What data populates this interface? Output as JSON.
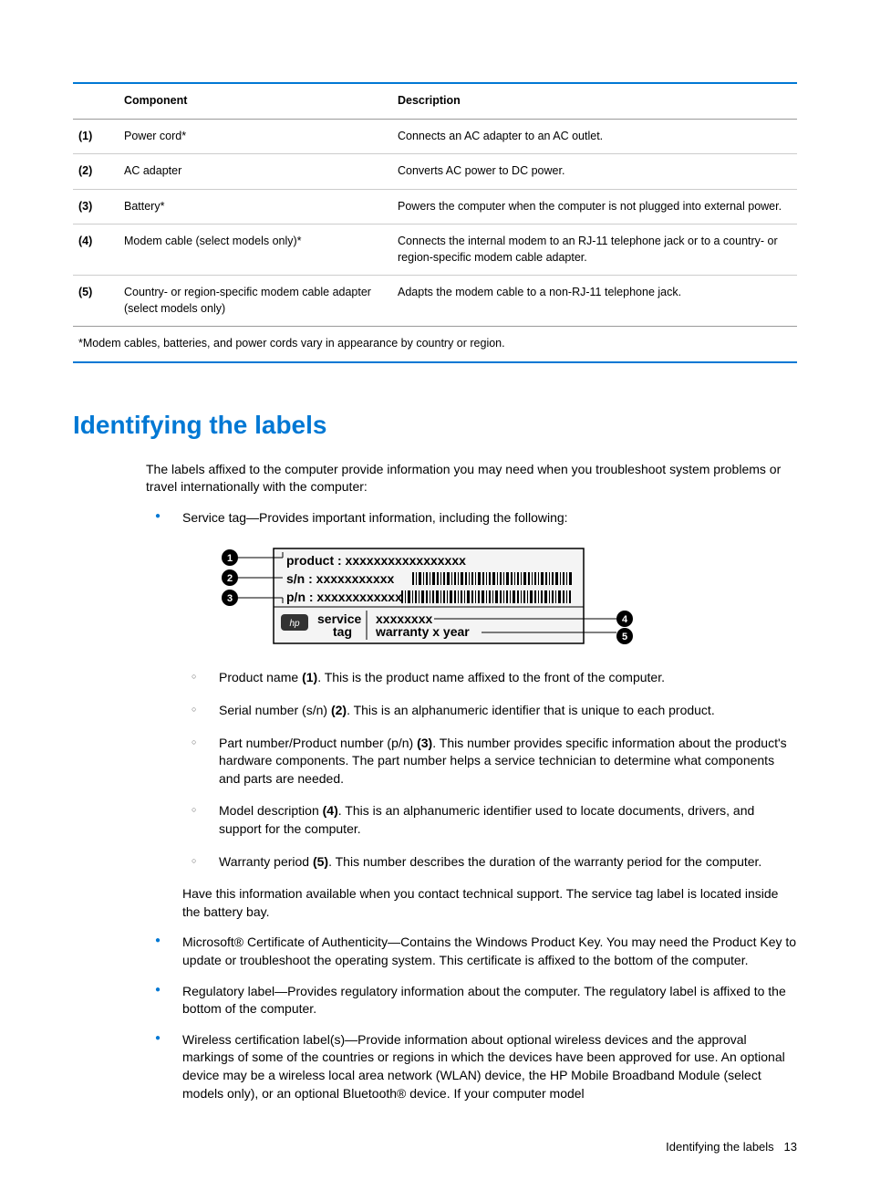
{
  "table": {
    "header": {
      "component": "Component",
      "description": "Description"
    },
    "rows": [
      {
        "num": "(1)",
        "comp": "Power cord*",
        "desc": "Connects an AC adapter to an AC outlet."
      },
      {
        "num": "(2)",
        "comp": "AC adapter",
        "desc": "Converts AC power to DC power."
      },
      {
        "num": "(3)",
        "comp": "Battery*",
        "desc": "Powers the computer when the computer is not plugged into external power."
      },
      {
        "num": "(4)",
        "comp": "Modem cable (select models only)*",
        "desc": "Connects the internal modem to an RJ-11 telephone jack or to a country- or region-specific modem cable adapter."
      },
      {
        "num": "(5)",
        "comp": "Country- or region-specific modem cable adapter (select models only)",
        "desc": "Adapts the modem cable to a non-RJ-11 telephone jack."
      }
    ],
    "footnote": "*Modem cables, batteries, and power cords vary in appearance by country or region."
  },
  "heading": "Identifying the labels",
  "intro": "The labels affixed to the computer provide information you may need when you troubleshoot system problems or travel internationally with the computer:",
  "bullet_service": "Service tag—Provides important information, including the following:",
  "tag_diagram": {
    "callouts": [
      "1",
      "2",
      "3",
      "4",
      "5"
    ],
    "lines": {
      "product": "product : xxxxxxxxxxxxxxxxx",
      "sn": "s/n : xxxxxxxxxxx",
      "pn": "p/n : xxxxxxxxxxxx",
      "service": "service",
      "tag": "tag",
      "model": "xxxxxxxx",
      "warranty": "warranty  x year"
    }
  },
  "sub": {
    "product_a": "Product name ",
    "product_b": "(1)",
    "product_c": ". This is the product name affixed to the front of the computer.",
    "serial_a": "Serial number (s/n) ",
    "serial_b": "(2)",
    "serial_c": ". This is an alphanumeric identifier that is unique to each product.",
    "part_a": "Part number/Product number (p/n) ",
    "part_b": "(3)",
    "part_c": ". This number provides specific information about the product's hardware components. The part number helps a service technician to determine what components and parts are needed.",
    "model_a": "Model description ",
    "model_b": "(4)",
    "model_c": ". This is an alphanumeric identifier used to locate documents, drivers, and support for the computer.",
    "warranty_a": "Warranty period ",
    "warranty_b": "(5)",
    "warranty_c": ". This number describes the duration of the warranty period for the computer."
  },
  "inside_para": "Have this information available when you contact technical support. The service tag label is located inside the battery bay.",
  "bullet_coa": "Microsoft® Certificate of Authenticity—Contains the Windows Product Key. You may need the Product Key to update or troubleshoot the operating system. This certificate is affixed to the bottom of the computer.",
  "bullet_reg": "Regulatory label—Provides regulatory information about the computer. The regulatory label is affixed to the bottom of the computer.",
  "bullet_wireless": "Wireless certification label(s)—Provide information about optional wireless devices and the approval markings of some of the countries or regions in which the devices have been approved for use. An optional device may be a wireless local area network (WLAN) device, the HP Mobile Broadband Module (select models only), or an optional Bluetooth® device. If your computer model",
  "footer": {
    "text": "Identifying the labels",
    "page": "13"
  },
  "colors": {
    "accent": "#0078d4",
    "text": "#000000",
    "grid": "#cccccc"
  }
}
